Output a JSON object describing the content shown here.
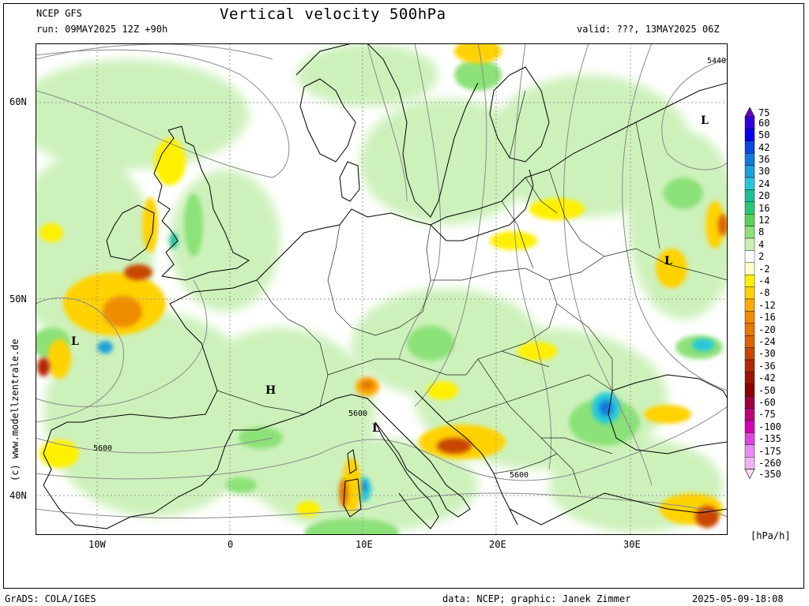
{
  "header": {
    "model": "NCEP GFS",
    "title": "Vertical velocity 500hPa",
    "run": "run: 09MAY2025 12Z +90h",
    "valid": "valid: ???, 13MAY2025 06Z"
  },
  "footer": {
    "software": "GrADS: COLA/IGES",
    "credits": "data: NCEP; graphic: Janek Zimmer",
    "timestamp": "2025-05-09-18:08"
  },
  "copyright": "(c) www.modellzentrale.de",
  "axes": {
    "lat_labels": [
      "60N",
      "50N",
      "40N"
    ],
    "lon_labels": [
      "10W",
      "0",
      "10E",
      "20E",
      "30E"
    ]
  },
  "legend": {
    "unit": "[hPa/h]",
    "entries": [
      {
        "label": "75",
        "color": "#6a00c8"
      },
      {
        "label": "60",
        "color": "#3200dc"
      },
      {
        "label": "50",
        "color": "#0000f0"
      },
      {
        "label": "42",
        "color": "#0a46e6"
      },
      {
        "label": "36",
        "color": "#1478dc"
      },
      {
        "label": "30",
        "color": "#1ea0dc"
      },
      {
        "label": "24",
        "color": "#28c8dc"
      },
      {
        "label": "20",
        "color": "#1ebe9b"
      },
      {
        "label": "16",
        "color": "#28c878"
      },
      {
        "label": "12",
        "color": "#5ad25a"
      },
      {
        "label": "8",
        "color": "#8ce178"
      },
      {
        "label": "4",
        "color": "#c8f0b4"
      },
      {
        "label": "2",
        "color": "#ffffff"
      },
      {
        "label": "-2",
        "color": "#ffffc8"
      },
      {
        "label": "-4",
        "color": "#fff000"
      },
      {
        "label": "-8",
        "color": "#ffd200"
      },
      {
        "label": "-12",
        "color": "#ffaa00"
      },
      {
        "label": "-16",
        "color": "#f08c00"
      },
      {
        "label": "-20",
        "color": "#e67800"
      },
      {
        "label": "-24",
        "color": "#dc6400"
      },
      {
        "label": "-30",
        "color": "#c84600"
      },
      {
        "label": "-36",
        "color": "#b42800"
      },
      {
        "label": "-42",
        "color": "#a01400"
      },
      {
        "label": "-50",
        "color": "#8c0000"
      },
      {
        "label": "-60",
        "color": "#a0003c"
      },
      {
        "label": "-75",
        "color": "#be0078"
      },
      {
        "label": "-100",
        "color": "#d200b4"
      },
      {
        "label": "-135",
        "color": "#dc46dc"
      },
      {
        "label": "-175",
        "color": "#e68cf0"
      },
      {
        "label": "-260",
        "color": "#f0b4f5"
      },
      {
        "label": "-350",
        "color": "#fadcfa"
      }
    ]
  },
  "map_labels": {
    "pressure_systems": [
      "L",
      "L",
      "L",
      "H",
      "L"
    ],
    "contours": [
      "5440",
      "5600",
      "5600",
      "5600"
    ]
  }
}
